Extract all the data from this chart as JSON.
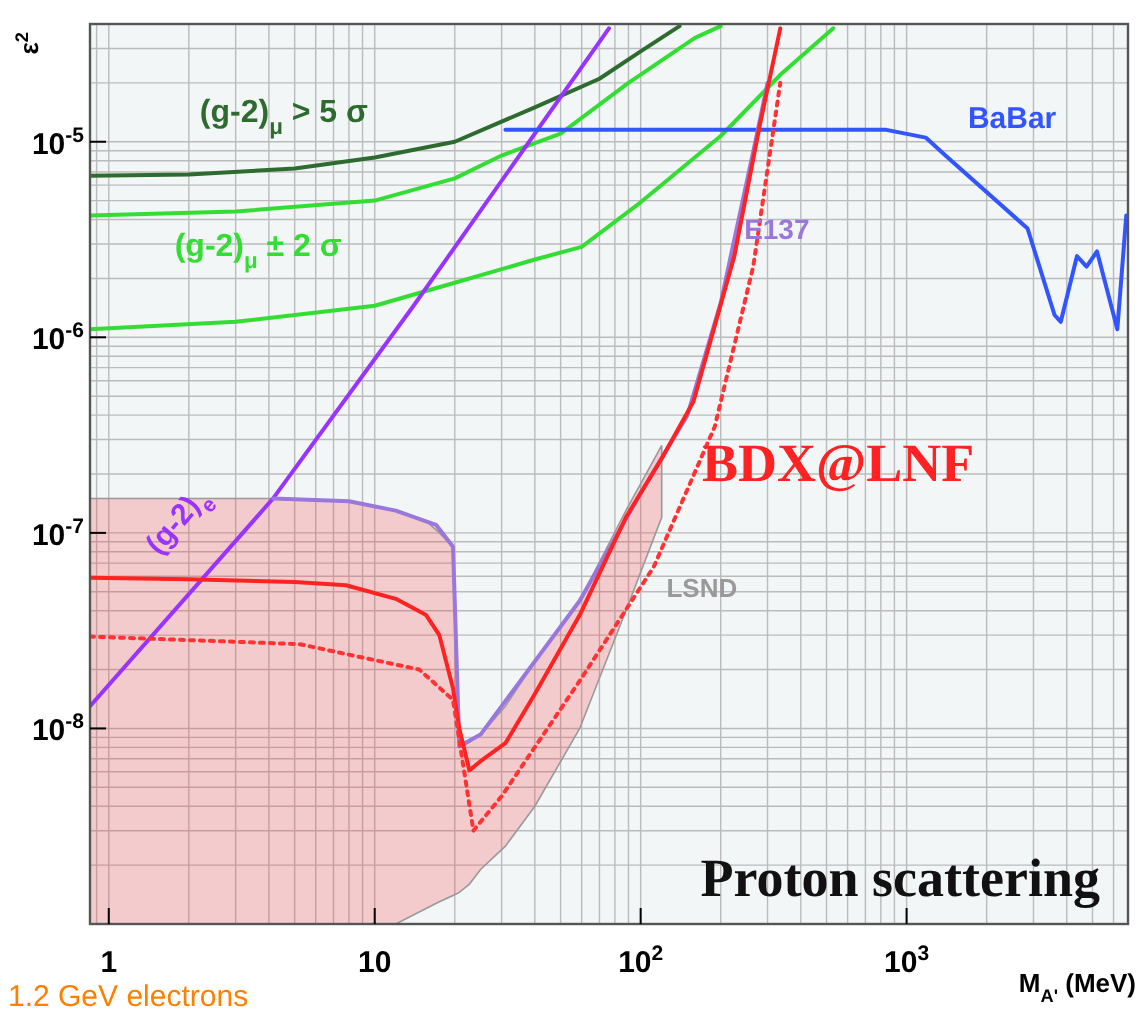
{
  "chart_data": {
    "type": "line",
    "ylabel": "ε$^{2}$",
    "xlabel": "M$_{A'}$ (MeV)",
    "log": "xy",
    "grid": true,
    "legend": false,
    "marker": "none",
    "xlim": [
      0.85,
      6800
    ],
    "ylim": [
      1e-09,
      4e-05
    ],
    "xticks": [
      {
        "value": 1,
        "label": "1"
      },
      {
        "value": 10,
        "label": "10"
      },
      {
        "value": 100,
        "label": "10$^{2}$"
      },
      {
        "value": 1000,
        "label": "10$^{3}$"
      }
    ],
    "yticks": [
      {
        "value": 1e-08,
        "label": "10$^{-8}$"
      },
      {
        "value": 1e-07,
        "label": "10$^{-7}$"
      },
      {
        "value": 1e-06,
        "label": "10$^{-6}$"
      },
      {
        "value": 1e-05,
        "label": "10$^{-5}$"
      }
    ],
    "series": [
      {
        "name": "(g-2)$_{μ}$ > 5 σ",
        "color": "#2e6b2e",
        "x": [
          0.85,
          2,
          5,
          10,
          20,
          40,
          70,
          100,
          140
        ],
        "values": [
          6.7e-06,
          6.8e-06,
          7.3e-06,
          8.3e-06,
          1e-05,
          1.5e-05,
          2.1e-05,
          2.9e-05,
          3.9e-05
        ]
      },
      {
        "name": "(g-2)$_{μ}$ ± 2 σ",
        "color": "#33dd33",
        "x": [
          0.85,
          3,
          10,
          20,
          30,
          50,
          90,
          160,
          200
        ],
        "values": [
          4.2e-06,
          4.4e-06,
          5e-06,
          6.5e-06,
          8.5e-06,
          1.1e-05,
          2e-05,
          3.4e-05,
          3.9e-05
        ]
      },
      {
        "color": "#33dd33",
        "x": [
          0.85,
          3,
          10,
          20,
          40,
          60,
          100,
          200,
          335,
          530
        ],
        "values": [
          1.1e-06,
          1.2e-06,
          1.45e-06,
          1.9e-06,
          2.5e-06,
          2.9e-06,
          4.9e-06,
          1.07e-05,
          2.2e-05,
          3.8e-05
        ]
      },
      {
        "name": "(g-2)$_{e}$",
        "color": "#9933ff",
        "x": [
          0.85,
          4.15,
          14,
          76
        ],
        "values": [
          1.3e-08,
          1.5e-07,
          1.45e-06,
          3.8e-05
        ]
      },
      {
        "name": "BaBar",
        "color": "#3355ff",
        "x": [
          31,
          840,
          1180,
          1400,
          2850,
          3600,
          3800,
          4370,
          4750,
          5200,
          6200,
          6700
        ],
        "values": [
          1.15e-05,
          1.15e-05,
          1.05e-05,
          8.5e-06,
          3.6e-06,
          1.3e-06,
          1.2e-06,
          2.6e-06,
          2.3e-06,
          2.75e-06,
          1.1e-06,
          4.2e-06
        ]
      },
      {
        "name": "E137",
        "color": "#9977dd",
        "x": [
          4.15,
          8,
          12,
          17,
          19.7,
          20.8,
          25,
          59,
          100,
          150,
          200,
          270,
          300
        ],
        "values": [
          1.5e-07,
          1.45e-07,
          1.3e-07,
          1.1e-07,
          8.5e-08,
          8.1e-09,
          9.3e-09,
          4.5e-08,
          1.6e-07,
          4e-07,
          1.5e-06,
          1e-05,
          2e-05
        ]
      },
      {
        "name": "BDX@LNF",
        "color": "#ff2222",
        "x": [
          0.85,
          2,
          5,
          7.8,
          12,
          15.6,
          17.5,
          19.7,
          20.8,
          22.7,
          25,
          31,
          40,
          59,
          88,
          120,
          158,
          225,
          280,
          335
        ],
        "values": [
          5.9e-08,
          5.8e-08,
          5.6e-08,
          5.4e-08,
          4.6e-08,
          3.8e-08,
          3e-08,
          1.6e-08,
          1e-08,
          6.1e-09,
          6.8e-09,
          8.4e-09,
          1.5e-08,
          3.8e-08,
          1.2e-07,
          2.4e-07,
          4.7e-07,
          2.6e-06,
          1.2e-05,
          3.8e-05
        ],
        "lower": [
          1e-09,
          1e-09,
          1e-09,
          1e-09,
          1e-09,
          1.2e-09,
          1.3e-09,
          1.4e-09,
          1.45e-09,
          1.6e-09,
          1.9e-09,
          2.5e-09,
          4e-09,
          1e-08,
          4e-08,
          1.2e-07,
          null,
          null,
          null,
          null
        ],
        "upper": [
          1.5e-07,
          1.5e-07,
          1.5e-07,
          1.45e-07,
          1.3e-07,
          1.15e-07,
          1e-07,
          8.5e-08,
          8e-09,
          8.5e-09,
          9.3e-09,
          1.3e-08,
          2.2e-08,
          4.5e-08,
          1.3e-07,
          2.8e-07,
          null,
          null,
          null,
          null
        ]
      },
      {
        "color": "#ff3333",
        "line_style": "dotted",
        "x": [
          0.85,
          5.2,
          14.7,
          19.7,
          23.5,
          30,
          59,
          112,
          190,
          265,
          335
        ],
        "values": [
          2.95e-08,
          2.7e-08,
          2e-08,
          1.4e-08,
          3e-09,
          4.5e-09,
          1.75e-08,
          6.7e-08,
          3.5e-07,
          2.3e-06,
          2e-05
        ]
      }
    ],
    "annotations": [
      "LSND",
      "Proton scattering",
      "1.2 GeV electrons"
    ]
  }
}
